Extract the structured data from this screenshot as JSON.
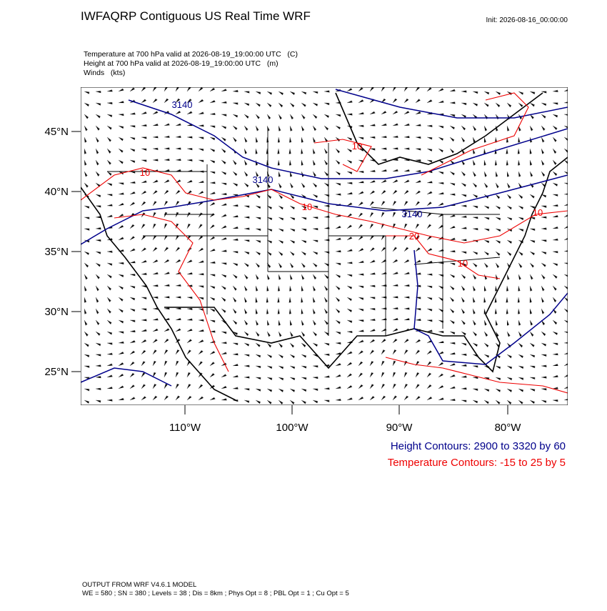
{
  "header": {
    "title": "IWFAQRP Contiguous US Real Time WRF",
    "init": "Init: 2026-08-16_00:00:00"
  },
  "fields": [
    "Temperature at 700 hPa valid at 2026-08-19_19:00:00 UTC   (C)",
    "Height at 700 hPa valid at 2026-08-19_19:00:00 UTC   (m)",
    "Winds   (kts)"
  ],
  "map": {
    "lat_labels": [
      "45°N",
      "40°N",
      "35°N",
      "30°N",
      "25°N"
    ],
    "lon_labels": [
      "110°W",
      "100°W",
      "90°W",
      "80°W"
    ],
    "height_labels": [
      "3140",
      "3140",
      "3140"
    ],
    "temperature_labels": [
      "10",
      "10",
      "10",
      "10",
      "20",
      "10"
    ]
  },
  "legend": {
    "height": "Height Contours: 2900 to 3320 by 60",
    "temperature": "Temperature Contours: -15 to 25 by 5"
  },
  "footer": {
    "model": "OUTPUT FROM WRF V4.6.1 MODEL",
    "settings": "WE = 580 ; SN = 380 ; Levels = 38 ; Dis = 8km ; Phys Opt = 8 ; PBL Opt = 1 ; Cu Opt = 5"
  }
}
